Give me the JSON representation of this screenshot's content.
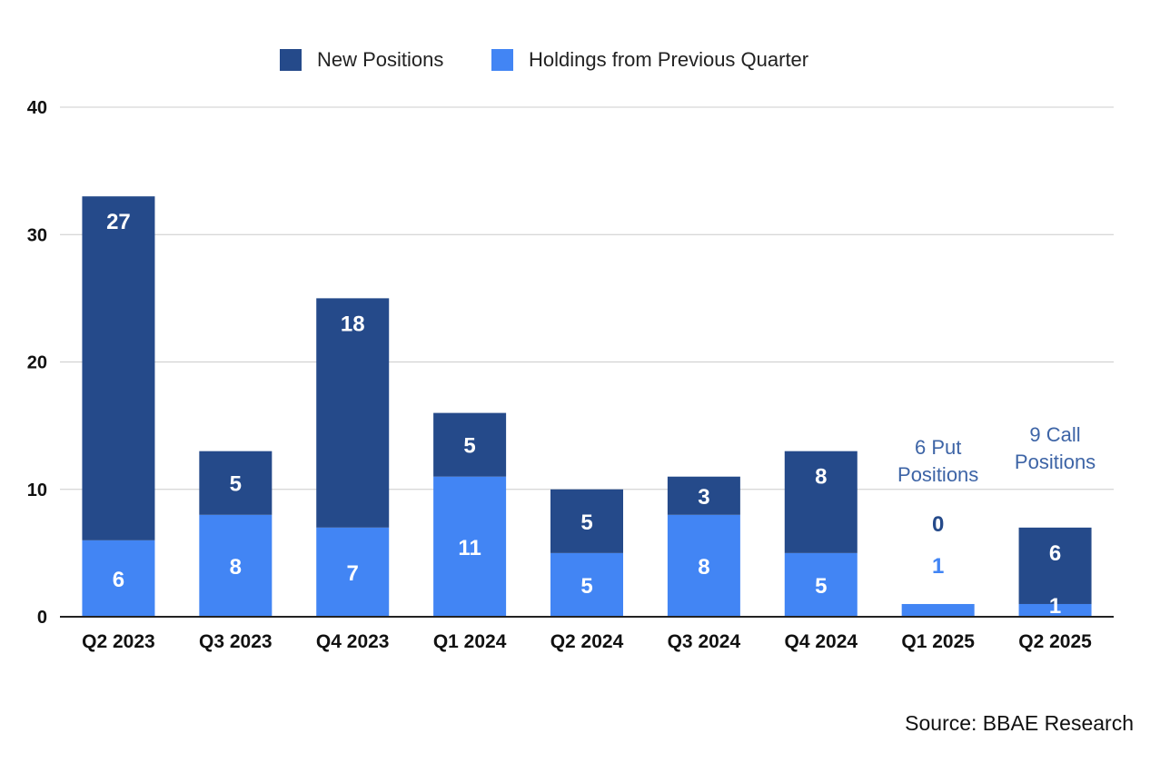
{
  "chart_data": {
    "type": "bar",
    "stacked": true,
    "categories": [
      "Q2 2023",
      "Q3 2023",
      "Q4 2023",
      "Q1 2024",
      "Q2 2024",
      "Q3 2024",
      "Q4 2024",
      "Q1 2025",
      "Q2 2025"
    ],
    "series": [
      {
        "name": "Holdings from Previous Quarter",
        "values": [
          6,
          8,
          7,
          11,
          5,
          8,
          5,
          1,
          1
        ],
        "color": "#4285f4"
      },
      {
        "name": "New Positions",
        "values": [
          27,
          5,
          18,
          5,
          5,
          3,
          8,
          0,
          6
        ],
        "color": "#254a8a"
      }
    ],
    "legend_order": [
      "New Positions",
      "Holdings from Previous Quarter"
    ],
    "legend_position": "top-center",
    "ylim": [
      0,
      40
    ],
    "yticks": [
      0,
      10,
      20,
      30,
      40
    ],
    "grid": true,
    "annotations": [
      {
        "category": "Q1 2025",
        "lines": [
          "6 Put",
          "Positions"
        ]
      },
      {
        "category": "Q2 2025",
        "lines": [
          "9 Call",
          "Positions"
        ]
      }
    ]
  },
  "source": "Source: BBAE Research"
}
